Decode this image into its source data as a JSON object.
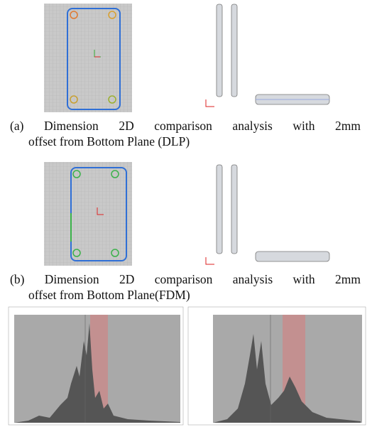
{
  "captions": [
    {
      "line1": "(a) Dimension 2D comparison analysis with 2mm",
      "line2": "offset from Bottom Plane (DLP)"
    },
    {
      "line1": "(b) Dimension 2D comparison analysis with 2mm",
      "line2": "offset from Bottom Plane(FDM)"
    }
  ]
}
